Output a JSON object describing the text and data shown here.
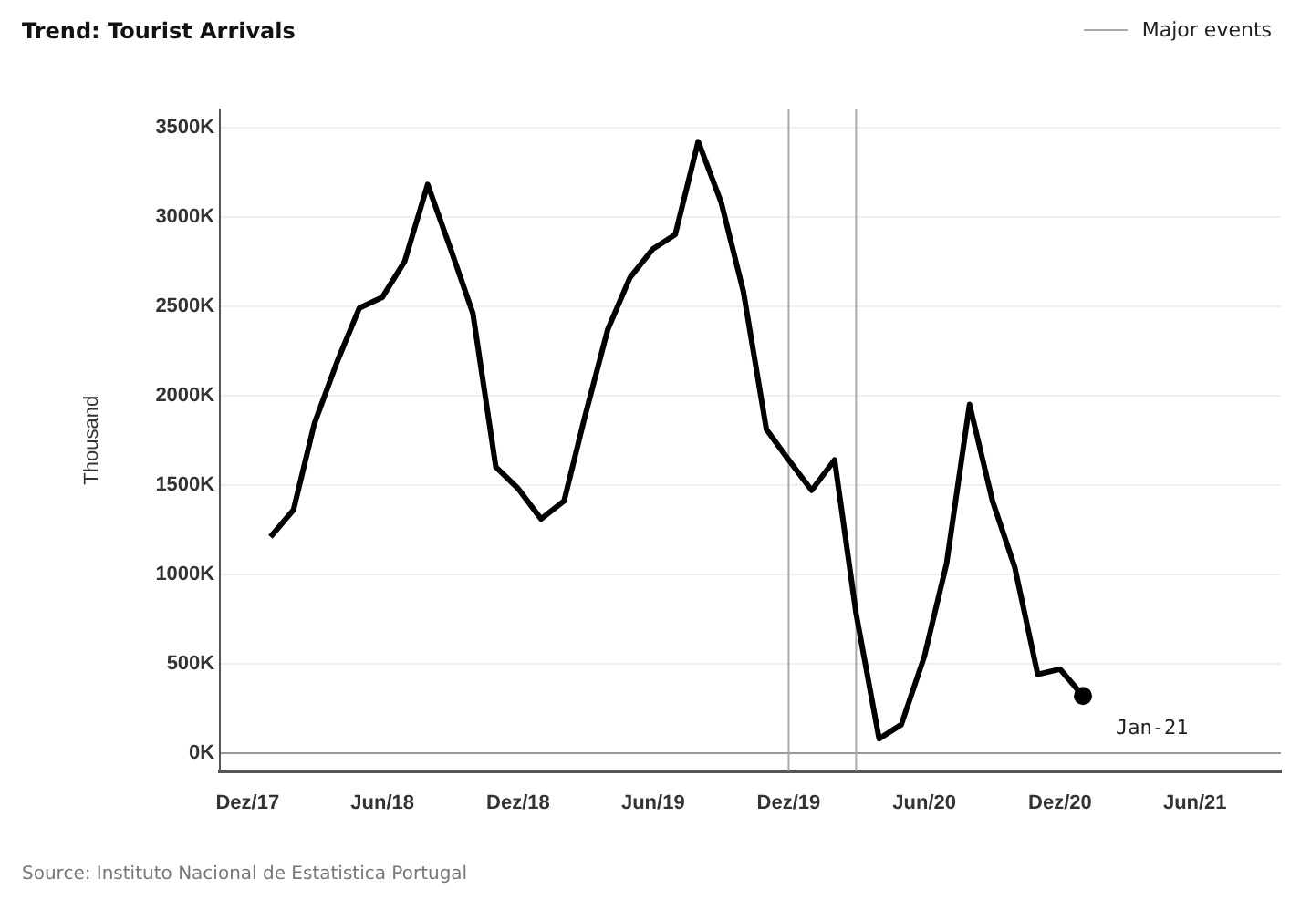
{
  "chart_data": {
    "type": "line",
    "title": "Trend:  Tourist Arrivals",
    "ylabel": "Thousand",
    "x": [
      "2018-01",
      "2018-02",
      "2018-03",
      "2018-04",
      "2018-05",
      "2018-06",
      "2018-07",
      "2018-08",
      "2018-09",
      "2018-10",
      "2018-11",
      "2018-12",
      "2019-01",
      "2019-02",
      "2019-03",
      "2019-04",
      "2019-05",
      "2019-06",
      "2019-07",
      "2019-08",
      "2019-09",
      "2019-10",
      "2019-11",
      "2019-12",
      "2020-01",
      "2020-02",
      "2020-03",
      "2020-04",
      "2020-05",
      "2020-06",
      "2020-07",
      "2020-08",
      "2020-09",
      "2020-10",
      "2020-11",
      "2020-12",
      "2021-01"
    ],
    "series": [
      {
        "color": "#000000",
        "values": [
          1210,
          1360,
          1840,
          2190,
          2490,
          2550,
          2750,
          3180,
          2820,
          2460,
          1600,
          1480,
          1310,
          1410,
          1880,
          2370,
          2660,
          2820,
          2900,
          3420,
          3080,
          2580,
          1810,
          1640,
          1470,
          1640,
          780,
          80,
          160,
          540,
          1060,
          1950,
          1410,
          1040,
          440,
          470,
          320
        ]
      }
    ],
    "xlim": [
      "2017-10-25",
      "2021-09-25"
    ],
    "xticks": [
      {
        "value": "2017-12",
        "label": "Dez/17"
      },
      {
        "value": "2018-06",
        "label": "Jun/18"
      },
      {
        "value": "2018-12",
        "label": "Dez/18"
      },
      {
        "value": "2019-06",
        "label": "Jun/19"
      },
      {
        "value": "2019-12",
        "label": "Dez/19"
      },
      {
        "value": "2020-06",
        "label": "Jun/20"
      },
      {
        "value": "2020-12",
        "label": "Dez/20"
      },
      {
        "value": "2021-06",
        "label": "Jun/21"
      }
    ],
    "ylim": [
      -100,
      3600
    ],
    "yticks": [
      {
        "value": 0,
        "label": "0K"
      },
      {
        "value": 500,
        "label": "500K"
      },
      {
        "value": 1000,
        "label": "1000K"
      },
      {
        "value": 1500,
        "label": "1500K"
      },
      {
        "value": 2000,
        "label": "2000K"
      },
      {
        "value": 2500,
        "label": "2500K"
      },
      {
        "value": 3000,
        "label": "3000K"
      },
      {
        "value": 3500,
        "label": "3500K"
      }
    ],
    "grid": "y",
    "legend": "top right",
    "line_style": "solid",
    "ref_lines": [
      {
        "axis": "x",
        "value": "2019-12",
        "label": "Major events",
        "color": "#aaaaaa"
      },
      {
        "axis": "x",
        "value": "2020-03",
        "color": "#aaaaaa"
      }
    ],
    "annotations": [
      {
        "text": "Jan-21",
        "x": "2021-01",
        "y": 320
      },
      "Source: Instituto Nacional de Estatistica Portugal"
    ]
  }
}
